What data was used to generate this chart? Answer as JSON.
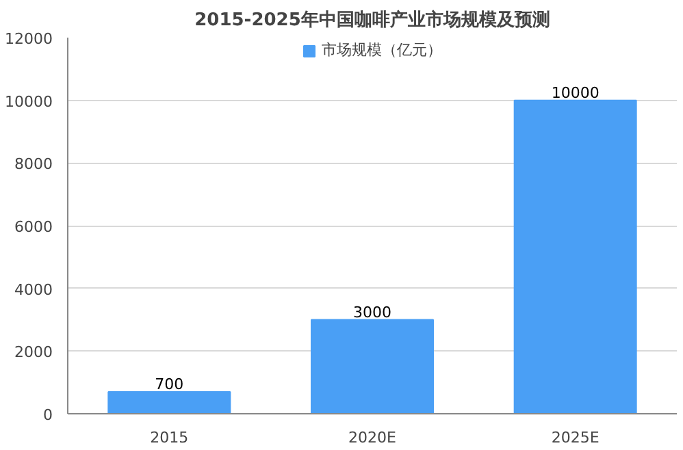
{
  "chart_data": {
    "type": "bar",
    "title": "2015-2025年中国咖啡产业市场规模及预测",
    "categories": [
      "2015",
      "2020E",
      "2025E"
    ],
    "series": [
      {
        "name": "市场规模（亿元）",
        "color": "#4a9ff5",
        "values": [
          700,
          3000,
          10000
        ]
      }
    ],
    "ylim": [
      0,
      12000
    ],
    "yticks": [
      0,
      2000,
      4000,
      6000,
      8000,
      10000,
      12000
    ],
    "grid": "y",
    "legend": "top",
    "data_labels": true
  }
}
